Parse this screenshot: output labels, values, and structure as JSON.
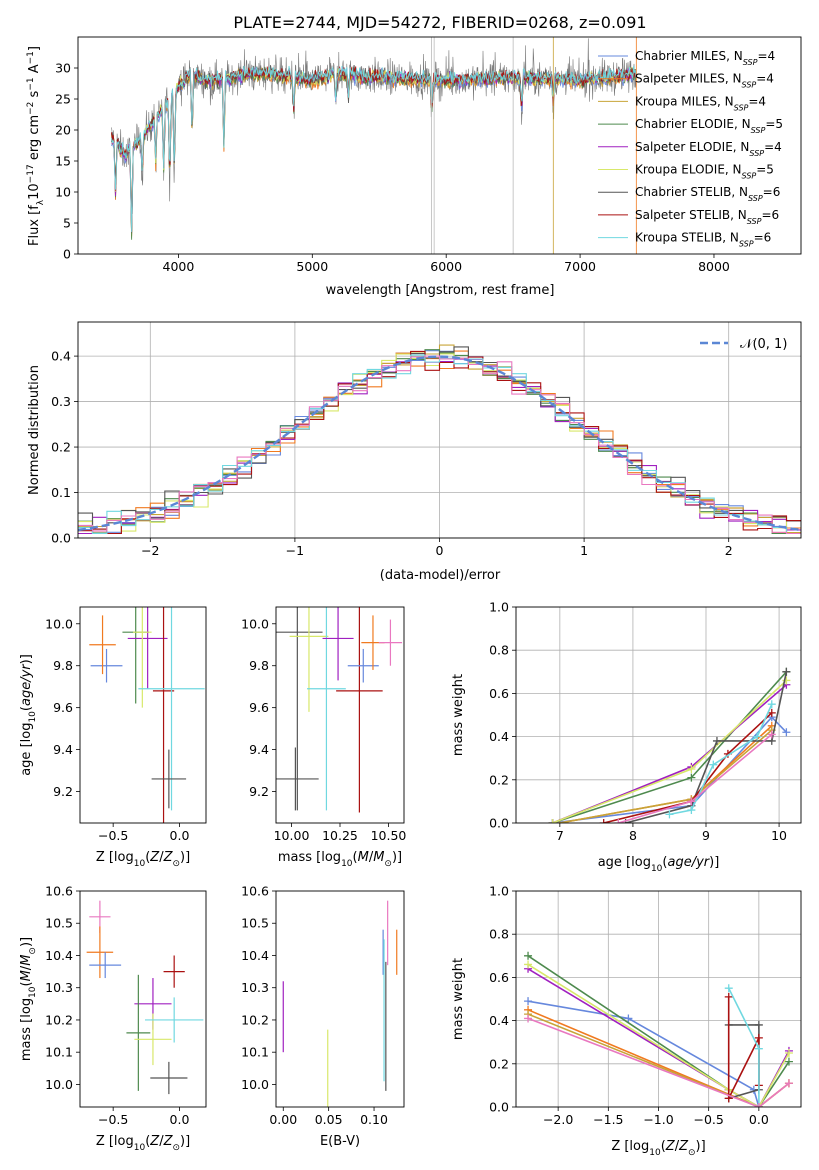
{
  "title": "PLATE=2744, MJD=54272, FIBERID=0268, z=0.091",
  "colors": [
    "#6688dd",
    "#f07a20",
    "#c8a438",
    "#4e8a4e",
    "#a020c0",
    "#d8e86a",
    "#555555",
    "#aa1111",
    "#70d8e0",
    "#e978c0"
  ],
  "chart_data": [
    {
      "type": "line",
      "id": "spectrum",
      "xlabel": "wavelength [Angstrom, rest frame]",
      "ylabel": "Flux [f_λ 10^-17 erg cm^-2 s^-1 A^-1]",
      "xlim": [
        3250,
        8650
      ],
      "ylim": [
        0,
        35
      ],
      "xticks": [
        4000,
        5000,
        6000,
        7000,
        8000
      ],
      "yticks": [
        0,
        5,
        10,
        15,
        20,
        25,
        30
      ],
      "legend": "top-right",
      "grid": false,
      "series": [
        {
          "name": "Chabrier MILES, N_SSP=4"
        },
        {
          "name": "Salpeter MILES, N_SSP=4"
        },
        {
          "name": "Kroupa MILES, N_SSP=4"
        },
        {
          "name": "Chabrier ELODIE, N_SSP=5"
        },
        {
          "name": "Salpeter ELODIE, N_SSP=4"
        },
        {
          "name": "Kroupa ELODIE, N_SSP=5"
        },
        {
          "name": "Chabrier STELIB, N_SSP=6"
        },
        {
          "name": "Salpeter STELIB, N_SSP=6"
        },
        {
          "name": "Kroupa STELIB, N_SSP=6"
        }
      ],
      "continuum": [
        [
          3500,
          19
        ],
        [
          3600,
          16
        ],
        [
          3700,
          18
        ],
        [
          3800,
          21
        ],
        [
          3900,
          24
        ],
        [
          4000,
          27
        ],
        [
          4100,
          29
        ],
        [
          4200,
          28
        ],
        [
          4300,
          28
        ],
        [
          4500,
          29
        ],
        [
          4700,
          29
        ],
        [
          5000,
          28
        ],
        [
          5200,
          29
        ],
        [
          5500,
          28.5
        ],
        [
          6000,
          28
        ],
        [
          6500,
          28.5
        ],
        [
          7000,
          28
        ],
        [
          7400,
          29
        ]
      ],
      "features": [
        [
          3530,
          9
        ],
        [
          3650,
          2
        ],
        [
          3730,
          12
        ],
        [
          3830,
          14
        ],
        [
          3890,
          13
        ],
        [
          3935,
          10
        ],
        [
          3970,
          12
        ],
        [
          4102,
          18
        ],
        [
          4340,
          16
        ],
        [
          4861,
          22
        ],
        [
          5175,
          24
        ],
        [
          5270,
          25
        ],
        [
          5892,
          22
        ],
        [
          6563,
          22
        ],
        [
          6800,
          24
        ]
      ]
    },
    {
      "type": "bar",
      "id": "residual-hist",
      "xlabel": "(data-model)/error",
      "ylabel": "Normed distribution",
      "xlim": [
        -2.5,
        2.5
      ],
      "ylim": [
        0,
        0.475
      ],
      "xticks": [
        -2,
        -1,
        0,
        1,
        2
      ],
      "yticks": [
        0.0,
        0.1,
        0.2,
        0.3,
        0.4
      ],
      "legend_label": "𝒩(0, 1)",
      "bin_width": 0.1,
      "grid": true
    },
    {
      "type": "scatter",
      "id": "age-vs-z",
      "xlabel": "Z [log10(Z/Z☉)]",
      "ylabel": "age [log10(age/yr)]",
      "xlim": [
        -0.75,
        0.2
      ],
      "ylim": [
        9.05,
        10.08
      ],
      "xticks": [
        -0.5,
        0.0
      ],
      "yticks": [
        9.2,
        9.4,
        9.6,
        9.8,
        10.0
      ],
      "points": [
        {
          "x": -0.55,
          "y": 9.8,
          "xerr": 0.12,
          "yerr": 0.08,
          "c": 0
        },
        {
          "x": -0.58,
          "y": 9.9,
          "xerr": 0.1,
          "yerr": 0.14,
          "c": 1
        },
        {
          "x": -0.33,
          "y": 9.96,
          "xerr": 0.1,
          "yerr": 0.34,
          "c": 3
        },
        {
          "x": -0.24,
          "y": 9.93,
          "xerr": 0.15,
          "yerr": 0.24,
          "c": 4
        },
        {
          "x": -0.28,
          "y": 9.96,
          "xerr": 0.07,
          "yerr": 0.36,
          "c": 5
        },
        {
          "x": -0.12,
          "y": 9.68,
          "xerr": 0.08,
          "yerr": 0.68,
          "c": 7
        },
        {
          "x": -0.06,
          "y": 9.69,
          "xerr": 0.25,
          "yerr": 0.58,
          "c": 8
        },
        {
          "x": -0.08,
          "y": 9.26,
          "xerr": 0.13,
          "yerr": 0.14,
          "c": 6
        }
      ]
    },
    {
      "type": "scatter",
      "id": "age-vs-mass",
      "xlabel": "mass [log10(M/M☉)]",
      "ylabel": "",
      "xlim": [
        9.92,
        10.58
      ],
      "ylim": [
        9.05,
        10.08
      ],
      "xticks": [
        10.0,
        10.25,
        10.5
      ],
      "yticks": [
        9.2,
        9.4,
        9.6,
        9.8,
        10.0
      ],
      "points": [
        {
          "x": 10.03,
          "y": 9.96,
          "xerr": 0.13,
          "yerr": 0.85,
          "c": 6
        },
        {
          "x": 10.09,
          "y": 9.94,
          "xerr": 0.1,
          "yerr": 0.36,
          "c": 5
        },
        {
          "x": 10.18,
          "y": 9.69,
          "xerr": 0.1,
          "yerr": 0.58,
          "c": 8
        },
        {
          "x": 10.24,
          "y": 9.93,
          "xerr": 0.08,
          "yerr": 0.2,
          "c": 4
        },
        {
          "x": 10.35,
          "y": 9.68,
          "xerr": 0.12,
          "yerr": 0.58,
          "c": 7
        },
        {
          "x": 10.37,
          "y": 9.8,
          "xerr": 0.08,
          "yerr": 0.08,
          "c": 0
        },
        {
          "x": 10.42,
          "y": 9.91,
          "xerr": 0.06,
          "yerr": 0.13,
          "c": 1
        },
        {
          "x": 10.51,
          "y": 9.91,
          "xerr": 0.06,
          "yerr": 0.11,
          "c": 9
        },
        {
          "x": 10.02,
          "y": 9.26,
          "xerr": 0.12,
          "yerr": 0.15,
          "c": 6
        }
      ]
    },
    {
      "type": "line",
      "id": "weight-vs-age",
      "xlabel": "age [log10(age/yr)]",
      "ylabel": "mass weight",
      "xlim": [
        6.4,
        10.3
      ],
      "ylim": [
        0,
        1.0
      ],
      "xticks": [
        7,
        8,
        9,
        10
      ],
      "yticks": [
        0.0,
        0.2,
        0.4,
        0.6,
        0.8,
        1.0
      ],
      "grid": true,
      "series": [
        {
          "c": 0,
          "x": [
            6.9,
            8.8,
            9.9,
            10.1
          ],
          "y": [
            0.0,
            0.08,
            0.49,
            0.42
          ]
        },
        {
          "c": 1,
          "x": [
            7.0,
            8.8,
            9.9
          ],
          "y": [
            0.0,
            0.11,
            0.45
          ]
        },
        {
          "c": 2,
          "x": [
            7.0,
            8.8,
            9.9
          ],
          "y": [
            0.0,
            0.11,
            0.43
          ]
        },
        {
          "c": 3,
          "x": [
            6.9,
            8.8,
            10.1
          ],
          "y": [
            0.0,
            0.21,
            0.7
          ]
        },
        {
          "c": 4,
          "x": [
            6.9,
            8.8,
            10.1
          ],
          "y": [
            0.0,
            0.26,
            0.64
          ]
        },
        {
          "c": 5,
          "x": [
            6.9,
            8.8,
            10.1
          ],
          "y": [
            0.0,
            0.25,
            0.66
          ]
        },
        {
          "c": 6,
          "x": [
            7.9,
            8.8,
            9.15,
            9.9,
            10.1
          ],
          "y": [
            0.0,
            0.08,
            0.38,
            0.38,
            0.7
          ]
        },
        {
          "c": 7,
          "x": [
            7.6,
            8.8,
            9.3,
            9.9
          ],
          "y": [
            0.0,
            0.1,
            0.32,
            0.51
          ]
        },
        {
          "c": 8,
          "x": [
            8.5,
            8.8,
            9.1,
            9.7,
            9.9
          ],
          "y": [
            0.04,
            0.06,
            0.27,
            0.4,
            0.55
          ]
        },
        {
          "c": 9,
          "x": [
            7.8,
            8.8,
            9.9
          ],
          "y": [
            0.0,
            0.1,
            0.41
          ]
        }
      ]
    },
    {
      "type": "scatter",
      "id": "mass-vs-z",
      "xlabel": "Z [log10(Z/Z☉)]",
      "ylabel": "mass [log10(M/M☉)]",
      "xlim": [
        -0.75,
        0.2
      ],
      "ylim": [
        9.93,
        10.6
      ],
      "xticks": [
        -0.5,
        0.0
      ],
      "yticks": [
        10.0,
        10.1,
        10.2,
        10.3,
        10.4,
        10.5,
        10.6
      ],
      "points": [
        {
          "x": -0.6,
          "y": 10.52,
          "xerr": 0.08,
          "yerr": 0.05,
          "c": 9
        },
        {
          "x": -0.6,
          "y": 10.41,
          "xerr": 0.1,
          "yerr": 0.08,
          "c": 1
        },
        {
          "x": -0.56,
          "y": 10.37,
          "xerr": 0.12,
          "yerr": 0.04,
          "c": 0
        },
        {
          "x": -0.04,
          "y": 10.35,
          "xerr": 0.08,
          "yerr": 0.05,
          "c": 7
        },
        {
          "x": -0.2,
          "y": 10.25,
          "xerr": 0.14,
          "yerr": 0.08,
          "c": 4
        },
        {
          "x": -0.31,
          "y": 10.16,
          "xerr": 0.09,
          "yerr": 0.18,
          "c": 3
        },
        {
          "x": -0.2,
          "y": 10.14,
          "xerr": 0.14,
          "yerr": 0.08,
          "c": 5
        },
        {
          "x": -0.04,
          "y": 10.2,
          "xerr": 0.22,
          "yerr": 0.07,
          "c": 8
        },
        {
          "x": -0.08,
          "y": 10.02,
          "xerr": 0.14,
          "yerr": 0.05,
          "c": 6
        }
      ]
    },
    {
      "type": "scatter",
      "id": "mass-vs-ebv",
      "xlabel": "E(B-V)",
      "ylabel": "",
      "xlim": [
        -0.008,
        0.133
      ],
      "ylim": [
        9.93,
        10.6
      ],
      "xticks": [
        0.0,
        0.05,
        0.1
      ],
      "yticks": [
        10.0,
        10.1,
        10.2,
        10.3,
        10.4,
        10.5,
        10.6
      ],
      "points": [
        {
          "x": 0.0,
          "y": 10.21,
          "yerr": 0.11,
          "c": 4
        },
        {
          "x": 0.049,
          "y": 10.05,
          "yerr": 0.12,
          "c": 5
        },
        {
          "x": 0.11,
          "y": 10.41,
          "yerr": 0.07,
          "c": 0
        },
        {
          "x": 0.113,
          "y": 10.18,
          "yerr": 0.2,
          "c": 6
        },
        {
          "x": 0.115,
          "y": 10.47,
          "yerr": 0.1,
          "c": 9
        },
        {
          "x": 0.125,
          "y": 10.41,
          "yerr": 0.07,
          "c": 1
        },
        {
          "x": 0.111,
          "y": 10.23,
          "yerr": 0.22,
          "c": 8
        }
      ]
    },
    {
      "type": "line",
      "id": "weight-vs-z",
      "xlabel": "Z [log10(Z/Z☉)]",
      "ylabel": "mass weight",
      "xlim": [
        -2.42,
        0.42
      ],
      "ylim": [
        0,
        1.0
      ],
      "xticks": [
        -2.0,
        -1.5,
        -1.0,
        -0.5,
        0.0
      ],
      "yticks": [
        0.0,
        0.2,
        0.4,
        0.6,
        0.8,
        1.0
      ],
      "grid": true,
      "series": [
        {
          "c": 0,
          "x": [
            -2.3,
            -1.3,
            -0.05,
            0.0
          ],
          "y": [
            0.49,
            0.41,
            0.08,
            0.0
          ]
        },
        {
          "c": 1,
          "x": [
            -2.3,
            0.0,
            0.3
          ],
          "y": [
            0.45,
            0.0,
            0.11
          ]
        },
        {
          "c": 2,
          "x": [
            -2.3,
            0.0,
            0.3
          ],
          "y": [
            0.43,
            0.0,
            0.11
          ]
        },
        {
          "c": 3,
          "x": [
            -2.3,
            -0.3,
            0.0,
            0.3
          ],
          "y": [
            0.7,
            0.08,
            0.0,
            0.21
          ]
        },
        {
          "c": 4,
          "x": [
            -2.3,
            -0.3,
            0.0,
            0.3
          ],
          "y": [
            0.64,
            0.08,
            0.0,
            0.26
          ]
        },
        {
          "c": 5,
          "x": [
            -2.3,
            -0.3,
            0.0,
            0.3
          ],
          "y": [
            0.66,
            0.08,
            0.0,
            0.25
          ]
        },
        {
          "c": 6,
          "x": [
            -0.3,
            0.0,
            0.0,
            -0.3
          ],
          "y": [
            0.38,
            0.38,
            0.08,
            0.04
          ]
        },
        {
          "c": 7,
          "x": [
            -0.3,
            -0.3,
            0.0,
            0.0
          ],
          "y": [
            0.51,
            0.04,
            0.32,
            0.1
          ]
        },
        {
          "c": 8,
          "x": [
            -0.3,
            0.0,
            0.0
          ],
          "y": [
            0.55,
            0.27,
            0.0
          ]
        },
        {
          "c": 9,
          "x": [
            -2.3,
            0.0,
            0.3
          ],
          "y": [
            0.41,
            0.0,
            0.11
          ]
        }
      ]
    }
  ]
}
